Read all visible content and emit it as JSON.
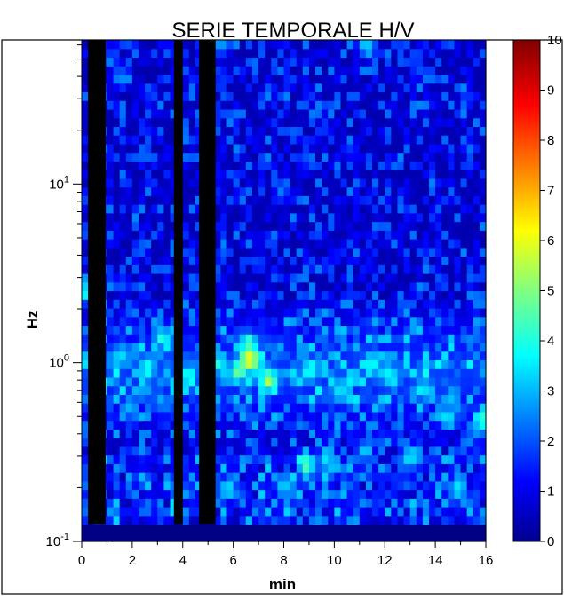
{
  "chart_data": {
    "type": "heatmap",
    "title": "SERIE TEMPORALE H/V",
    "xlabel": "min",
    "ylabel": "Hz",
    "xlim": [
      0,
      16
    ],
    "ylim": [
      0.1,
      64
    ],
    "y_scale": "log",
    "x_ticks": [
      "0",
      "2",
      "4",
      "6",
      "8",
      "10",
      "12",
      "14",
      "16"
    ],
    "y_ticks": [
      {
        "base": "10",
        "exp": "-1",
        "value": 0.1
      },
      {
        "base": "10",
        "exp": "0",
        "value": 1
      },
      {
        "base": "10",
        "exp": "1",
        "value": 10
      }
    ],
    "colorbar": {
      "ticks": [
        "0",
        "1",
        "2",
        "3",
        "4",
        "5",
        "6",
        "7",
        "8",
        "9",
        "10"
      ],
      "range": [
        0,
        10
      ],
      "colormap": "jet"
    },
    "colors": {
      "no_data": "#000000",
      "background_low": "#00008c"
    },
    "no_data_windows_min": [
      [
        0.25,
        0.95
      ],
      [
        3.65,
        4.0
      ],
      [
        4.65,
        5.3
      ]
    ],
    "data_mode": "top 40% of cells transparent column",
    "hotspots": [
      {
        "x": 6.7,
        "y": 1.05,
        "value": 6.4
      },
      {
        "x": 7.4,
        "y": 0.8,
        "value": 5.6
      },
      {
        "x": 6.2,
        "y": 0.9,
        "value": 4.9
      },
      {
        "x": 3.2,
        "y": 1.4,
        "value": 4.2
      },
      {
        "x": 5.2,
        "y": 1.0,
        "value": 4.4
      },
      {
        "x": 6.6,
        "y": 1.3,
        "value": 4.6
      },
      {
        "x": 8.9,
        "y": 0.27,
        "value": 4.7
      },
      {
        "x": 2.6,
        "y": 0.95,
        "value": 3.8
      },
      {
        "x": 4.2,
        "y": 0.85,
        "value": 3.9
      },
      {
        "x": 9.0,
        "y": 0.9,
        "value": 4.0
      },
      {
        "x": 11.5,
        "y": 1.0,
        "value": 3.9
      },
      {
        "x": 12.2,
        "y": 0.85,
        "value": 3.7
      },
      {
        "x": 14.5,
        "y": 0.5,
        "value": 3.6
      },
      {
        "x": 15.9,
        "y": 0.48,
        "value": 4.3
      },
      {
        "x": 0.1,
        "y": 2.5,
        "value": 4.0
      },
      {
        "x": 1.6,
        "y": 1.1,
        "value": 3.4
      },
      {
        "x": 10.2,
        "y": 0.7,
        "value": 3.5
      },
      {
        "x": 13.0,
        "y": 0.3,
        "value": 3.8
      },
      {
        "x": 5.8,
        "y": 0.2,
        "value": 3.5
      },
      {
        "x": 8.0,
        "y": 0.2,
        "value": 3.3
      },
      {
        "x": 9.7,
        "y": 0.3,
        "value": 3.5
      },
      {
        "x": 11.2,
        "y": 0.32,
        "value": 3.3
      },
      {
        "x": 13.6,
        "y": 0.7,
        "value": 3.4
      },
      {
        "x": 14.9,
        "y": 0.2,
        "value": 3.6
      },
      {
        "x": 5.5,
        "y": 60.0,
        "value": 3.0
      },
      {
        "x": 11.3,
        "y": 60.0,
        "value": 3.3
      },
      {
        "x": 1.5,
        "y": 40.0,
        "value": 2.8
      }
    ]
  }
}
